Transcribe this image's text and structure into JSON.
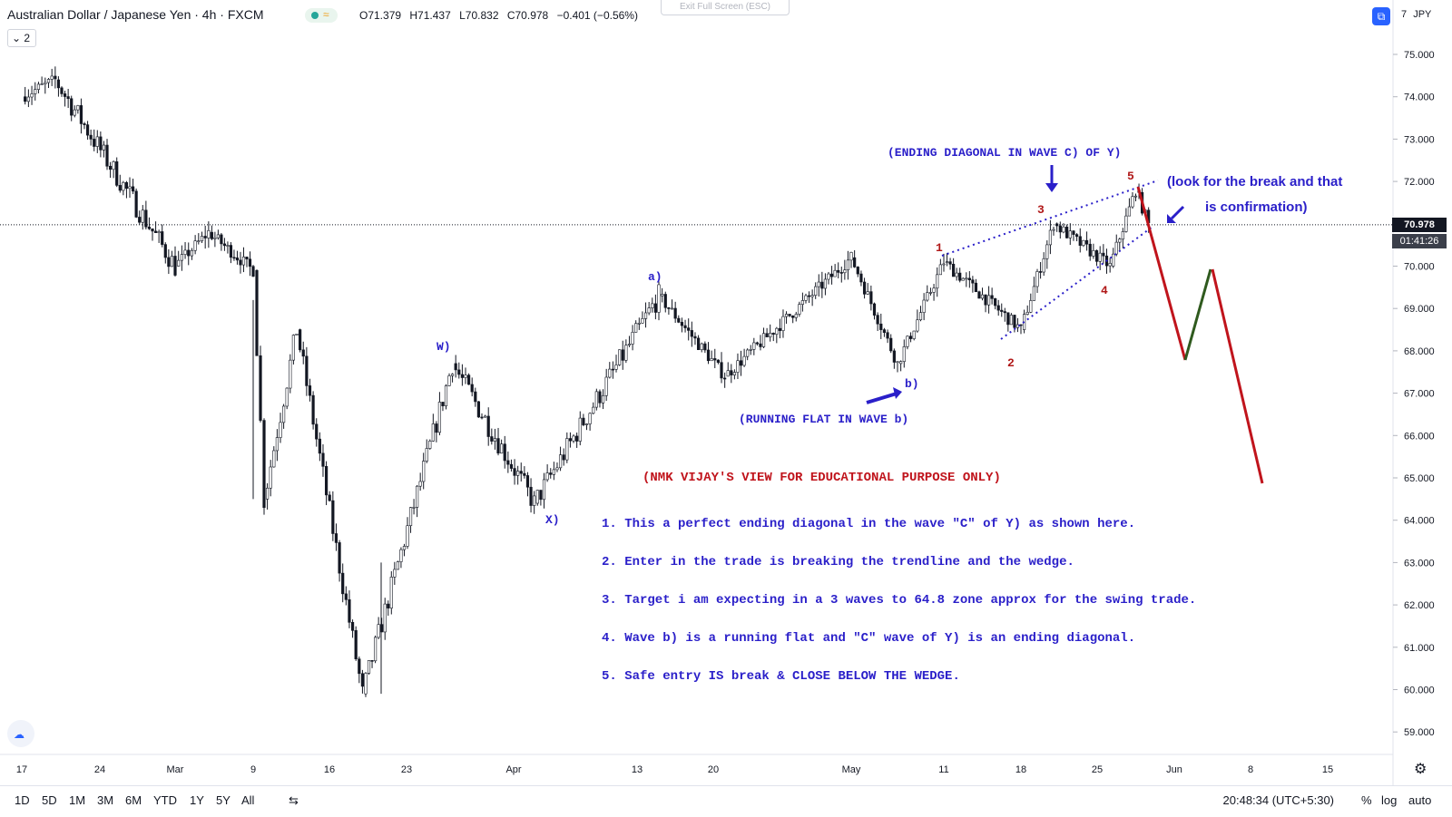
{
  "header": {
    "symbol_title": "Australian Dollar / Japanese Yen · 4h · FXCM",
    "ohlc": {
      "open": "O71.379",
      "high": "H71.437",
      "low": "L70.832",
      "close": "C70.978",
      "change": "−0.401 (−0.56%)"
    },
    "collapse_label": "⌄ 2",
    "exit_fullscreen": "Exit Full Screen (ESC)"
  },
  "price_axis": {
    "currency": "JPY",
    "ticks": [
      "75.000",
      "74.000",
      "73.000",
      "72.000",
      "71.000",
      "70.000",
      "69.000",
      "68.000",
      "67.000",
      "66.000",
      "65.000",
      "64.000",
      "63.000",
      "62.000",
      "61.000",
      "60.000",
      "59.000"
    ],
    "last_price": "70.978",
    "countdown": "01:41:26",
    "top_label": "7"
  },
  "time_axis": {
    "labels": [
      "17",
      "24",
      "Mar",
      "9",
      "16",
      "23",
      "Apr",
      "13",
      "20",
      "May",
      "11",
      "18",
      "25",
      "Jun",
      "8",
      "15"
    ]
  },
  "bottom_bar": {
    "timeframes": [
      "1D",
      "5D",
      "1M",
      "3M",
      "6M",
      "YTD",
      "1Y",
      "5Y",
      "All"
    ],
    "clock": "20:48:34 (UTC+5:30)",
    "options": [
      "%",
      "log",
      "auto"
    ]
  },
  "annotations": {
    "ending_diagonal": "(ENDING DIAGONAL IN WAVE C) OF Y)",
    "look_break_1": "(look for the break and that",
    "look_break_2": "is confirmation)",
    "running_flat": "(RUNNING FLAT IN WAVE b)",
    "disclaimer": "(NMK VIJAY'S VIEW FOR EDUCATIONAL PURPOSE ONLY)",
    "notes": [
      "1. This a perfect ending diagonal in the wave \"C\" of Y) as shown here.",
      "2. Enter in the trade is breaking the trendline and the wedge.",
      "3. Target i am expecting in a 3 waves to 64.8 zone approx for the swing trade.",
      "4. Wave b) is a running flat and \"C\" wave of Y) is an ending diagonal.",
      "5. Safe entry IS break & CLOSE BELOW THE WEDGE."
    ],
    "wave_labels": {
      "w": "W)",
      "x": "X)",
      "a": "a)",
      "b": "b)",
      "d1": "1",
      "d2": "2",
      "d3": "3",
      "d4": "4",
      "d5": "5"
    }
  },
  "colors": {
    "annotation_blue": "#2a1fc9",
    "wave_red": "#b01818",
    "projection_red": "#c0141c",
    "projection_green": "#2f5a1e",
    "candle": "#131722",
    "last_price_bg": "#131722"
  },
  "chart_data": {
    "type": "candlestick",
    "symbol": "AUDJPY",
    "timeframe": "4h",
    "ylim": [
      58.5,
      75.5
    ],
    "key_points": [
      {
        "x": "Feb 17",
        "y": 74.0
      },
      {
        "x": "Feb 20",
        "y": 74.4
      },
      {
        "x": "Mar 2",
        "y": 70.0
      },
      {
        "x": "Mar 5",
        "y": 70.8
      },
      {
        "x": "Mar 9",
        "y": 69.9
      },
      {
        "x": "Mar 10",
        "y": 64.5
      },
      {
        "x": "Mar 13",
        "y": 68.5
      },
      {
        "x": "Mar 19",
        "y": 59.9
      },
      {
        "x": "Mar 26",
        "y": 67.7
      },
      {
        "x": "Apr 3",
        "y": 64.4
      },
      {
        "x": "Apr 15",
        "y": 69.3
      },
      {
        "x": "Apr 21",
        "y": 67.4
      },
      {
        "x": "May 1",
        "y": 70.2
      },
      {
        "x": "May 6",
        "y": 67.7
      },
      {
        "x": "May 11",
        "y": 70.1
      },
      {
        "x": "May 18",
        "y": 68.5
      },
      {
        "x": "May 21",
        "y": 71.0
      },
      {
        "x": "May 26",
        "y": 70.0
      },
      {
        "x": "May 28",
        "y": 71.8
      },
      {
        "x": "May 29",
        "y": 70.98
      }
    ],
    "projection": [
      {
        "x": "May 29",
        "y": 71.9,
        "color": "red"
      },
      {
        "x": "Jun 1",
        "y": 67.8,
        "color": "green"
      },
      {
        "x": "Jun 4",
        "y": 69.9,
        "color": "red"
      },
      {
        "x": "Jun 8",
        "y": 64.8
      }
    ],
    "last_price": 70.978,
    "grid": false
  }
}
